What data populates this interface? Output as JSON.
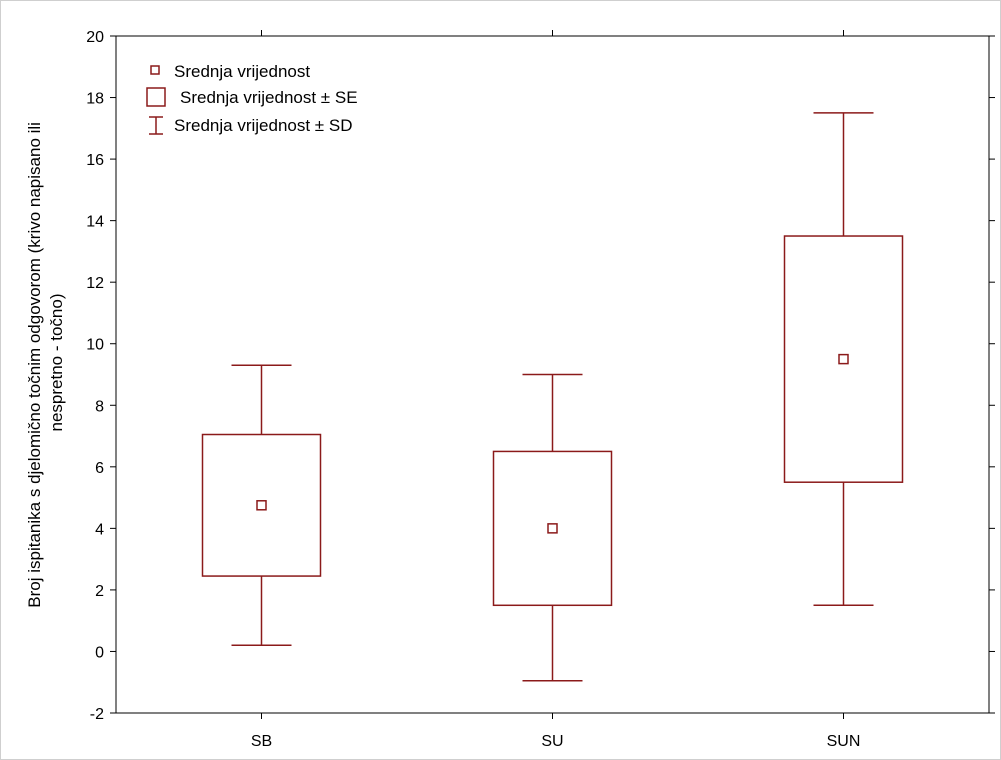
{
  "chart_data": {
    "type": "box",
    "ylabel_lines": [
      "Broj ispitanika s djelomično točnim odgovorom (krivo napisano ili",
      "nespretno - točno)"
    ],
    "categories": [
      "SB",
      "SU",
      "SUN"
    ],
    "mean": [
      4.75,
      4.0,
      9.5
    ],
    "se_low": [
      2.45,
      1.5,
      5.5
    ],
    "se_high": [
      7.05,
      6.5,
      13.5
    ],
    "sd_low": [
      0.2,
      -0.95,
      1.5
    ],
    "sd_high": [
      9.3,
      9.0,
      17.5
    ],
    "ylim": [
      -2,
      20
    ],
    "yticks": [
      -2,
      0,
      2,
      4,
      6,
      8,
      10,
      12,
      14,
      16,
      18,
      20
    ],
    "legend": {
      "position": "top-left",
      "entries": [
        "Srednja vrijednost",
        "Srednja vrijednost ± SE",
        "Srednja vrijednost ± SD"
      ]
    },
    "grid": false,
    "series_color": "#8b1a1a"
  }
}
